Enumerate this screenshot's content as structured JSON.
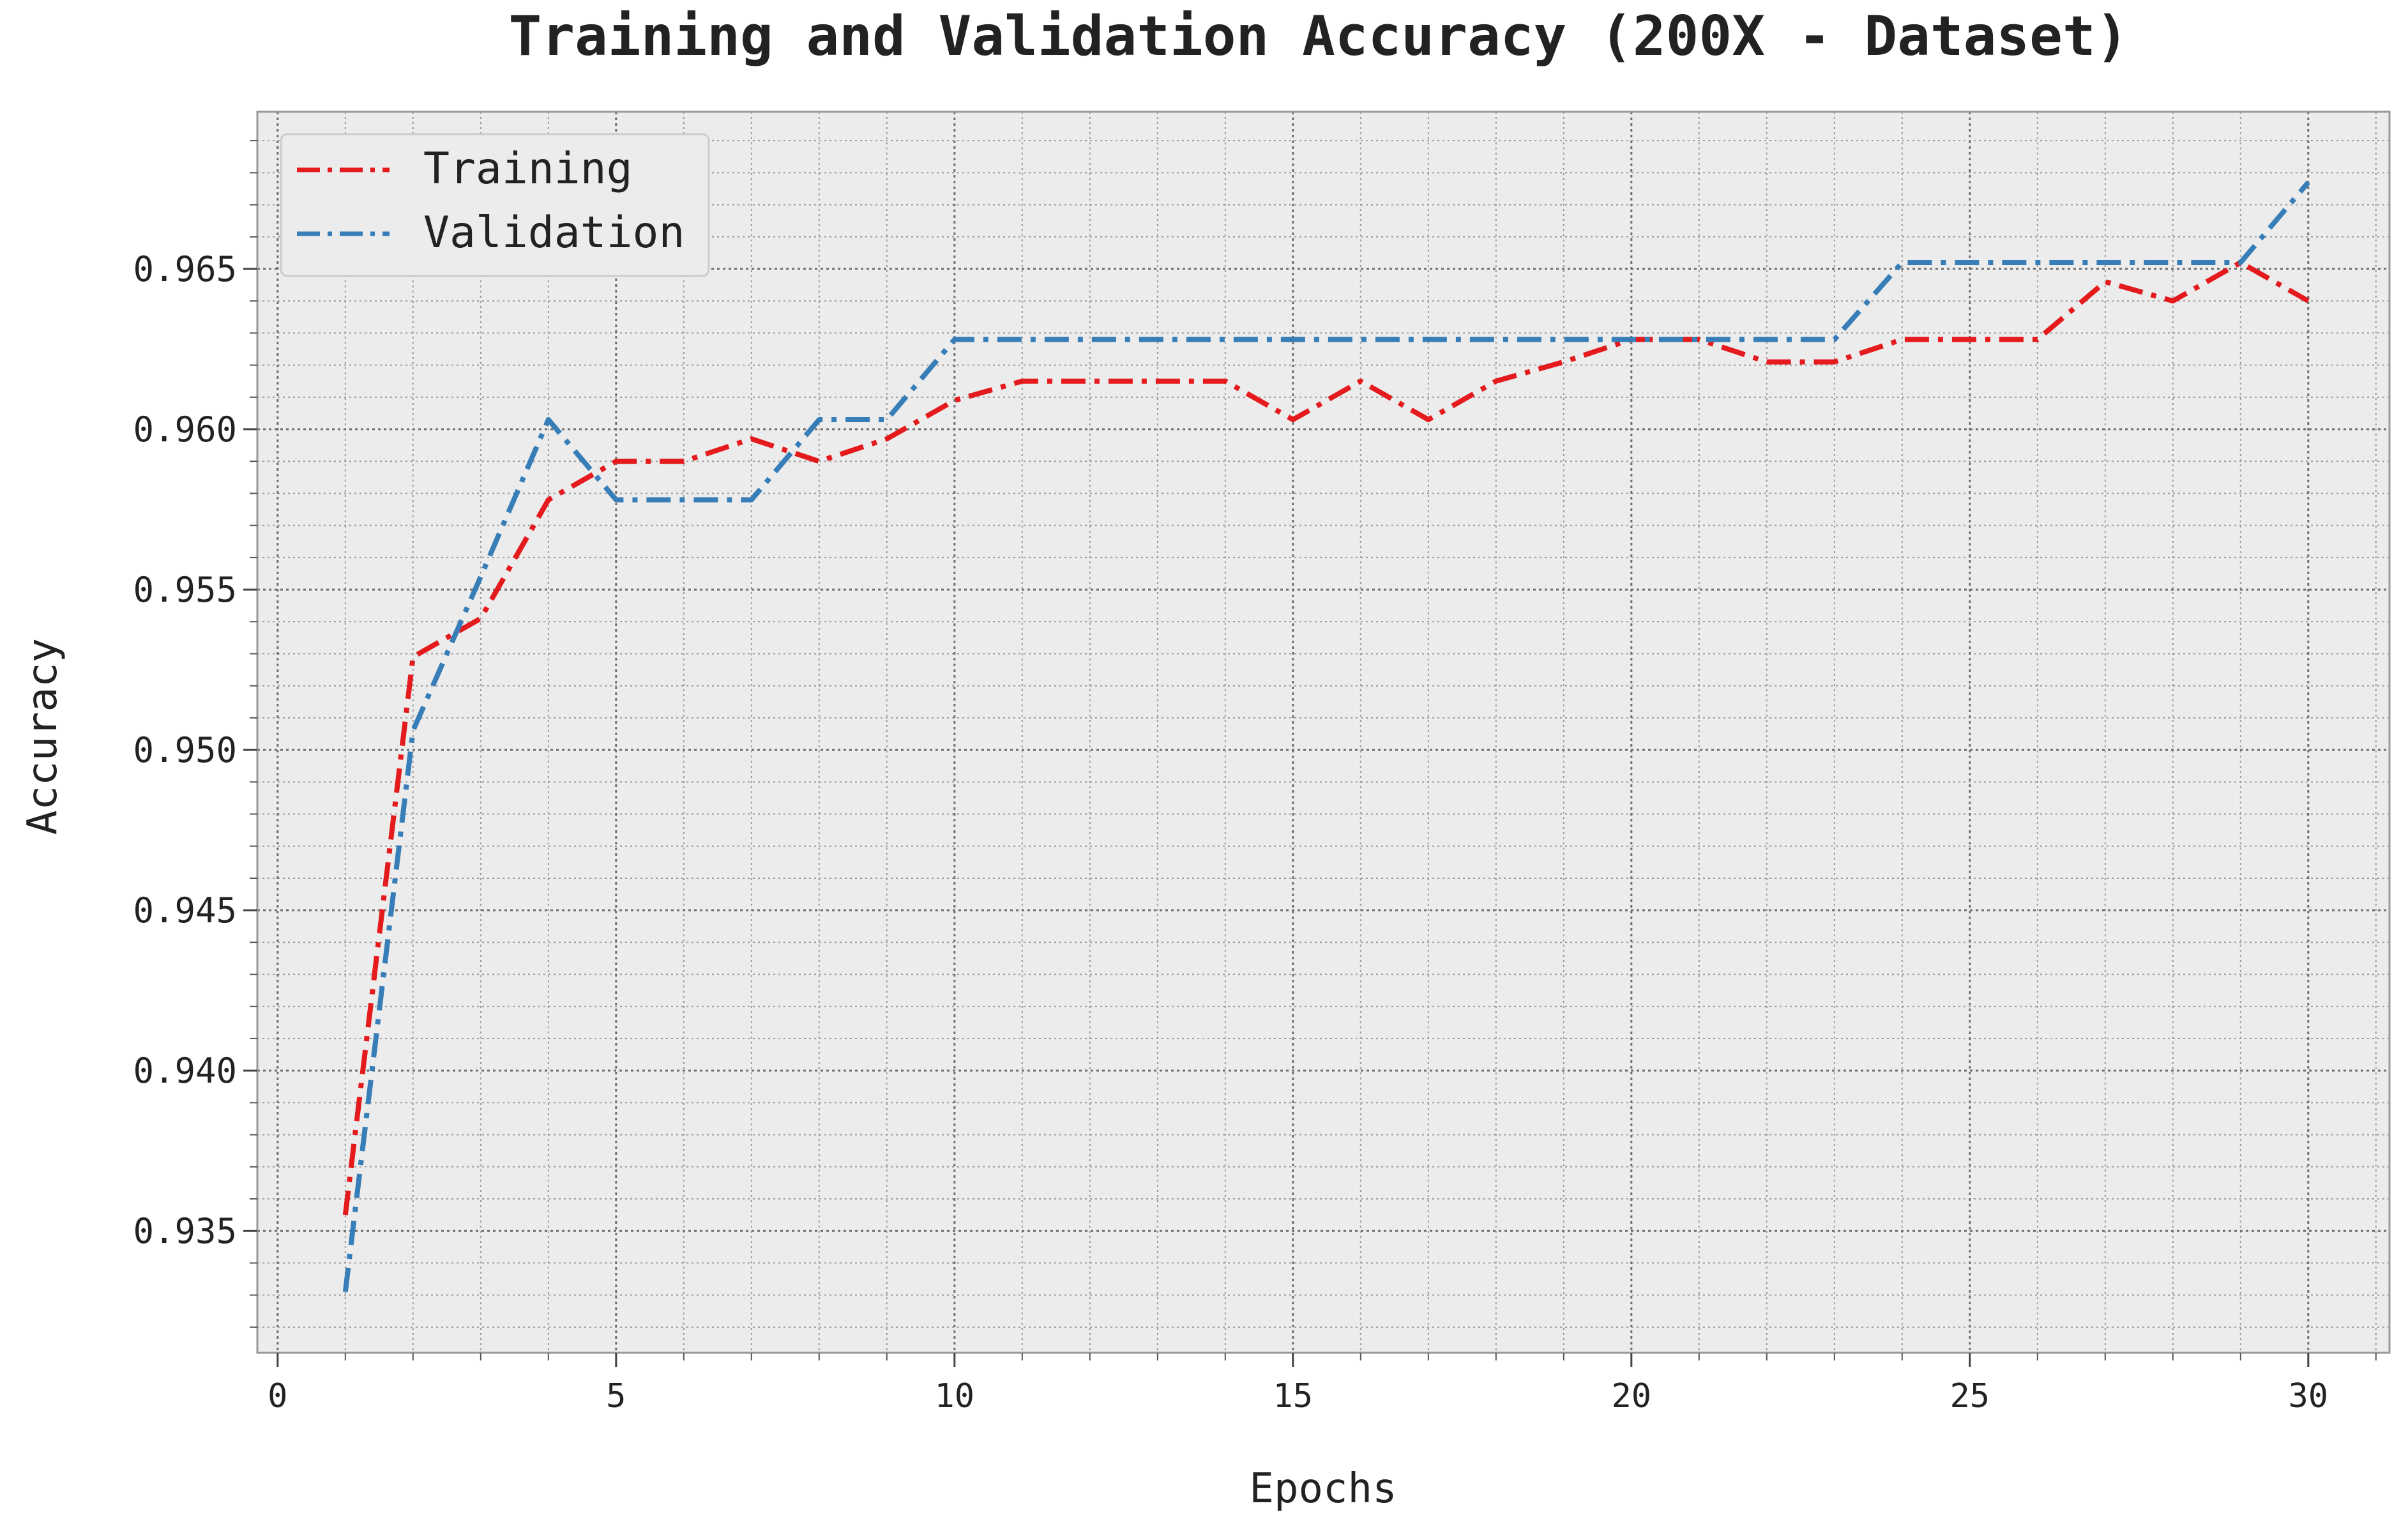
{
  "chart_data": {
    "type": "line",
    "title": "Training and Validation Accuracy (200X - Dataset)",
    "xlabel": "Epochs",
    "ylabel": "Accuracy",
    "xlim": [
      -0.3,
      31.2
    ],
    "ylim": [
      0.9312,
      0.9699
    ],
    "xticks": [
      0,
      5,
      10,
      15,
      20,
      25,
      30
    ],
    "xtick_labels": [
      "0",
      "5",
      "10",
      "15",
      "20",
      "25",
      "30"
    ],
    "yticks": [
      0.935,
      0.94,
      0.945,
      0.95,
      0.955,
      0.96,
      0.965
    ],
    "ytick_labels": [
      "0.935",
      "0.940",
      "0.945",
      "0.950",
      "0.955",
      "0.960",
      "0.965"
    ],
    "grid": true,
    "minor_grid": true,
    "legend_position": "top-left",
    "x": [
      1,
      2,
      3,
      4,
      5,
      6,
      7,
      8,
      9,
      10,
      11,
      12,
      13,
      14,
      15,
      16,
      17,
      18,
      19,
      20,
      21,
      22,
      23,
      24,
      25,
      26,
      27,
      28,
      29,
      30
    ],
    "series": [
      {
        "name": "Training",
        "color": "#e41a1c",
        "values": [
          0.9355,
          0.9529,
          0.9541,
          0.9578,
          0.959,
          0.959,
          0.9597,
          0.959,
          0.9597,
          0.9609,
          0.9615,
          0.9615,
          0.9615,
          0.9615,
          0.9603,
          0.9615,
          0.9603,
          0.9615,
          0.9621,
          0.9628,
          0.9628,
          0.9621,
          0.9621,
          0.9628,
          0.9628,
          0.9628,
          0.9646,
          0.964,
          0.9652,
          0.964
        ]
      },
      {
        "name": "Validation",
        "color": "#377eb8",
        "values": [
          0.9331,
          0.9506,
          0.9554,
          0.9603,
          0.9578,
          0.9578,
          0.9578,
          0.9603,
          0.9603,
          0.9628,
          0.9628,
          0.9628,
          0.9628,
          0.9628,
          0.9628,
          0.9628,
          0.9628,
          0.9628,
          0.9628,
          0.9628,
          0.9628,
          0.9628,
          0.9628,
          0.9652,
          0.9652,
          0.9652,
          0.9652,
          0.9652,
          0.9652,
          0.9677
        ]
      }
    ]
  }
}
